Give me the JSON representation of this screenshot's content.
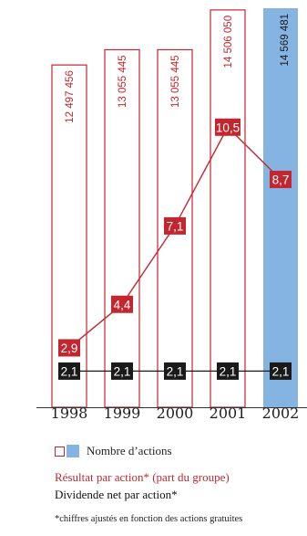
{
  "chart_data": {
    "type": "bar",
    "categories": [
      "1998",
      "1999",
      "2000",
      "2001",
      "2002"
    ],
    "series": [
      {
        "name": "Nombre d’actions",
        "values": [
          12497456,
          13055445,
          13055445,
          14506050,
          14569481
        ],
        "labels": [
          "12 497 456",
          "13 055 445",
          "13 055 445",
          "14 506 050",
          "14 569 481"
        ]
      },
      {
        "name": "Résultat par action* (part du groupe)",
        "values": [
          2.9,
          4.4,
          7.1,
          10.5,
          8.7
        ],
        "labels": [
          "2,9",
          "4,4",
          "7,1",
          "10,5",
          "8,7"
        ]
      },
      {
        "name": "Dividende net par action*",
        "values": [
          2.1,
          2.1,
          2.1,
          2.1,
          2.1
        ],
        "labels": [
          "2,1",
          "2,1",
          "2,1",
          "2,1",
          "2,1"
        ]
      }
    ]
  },
  "legend": {
    "shares_label": "Nombre d’actions",
    "eps_label": "Résultat par action* (part du groupe)",
    "dividend_label": "Dividende net par action*"
  },
  "footnote": "*chiffres ajustés en fonction des actions gratuites",
  "colors": {
    "red": "#c3262f",
    "blue": "#86b4e2",
    "black": "#1a1a1a"
  }
}
